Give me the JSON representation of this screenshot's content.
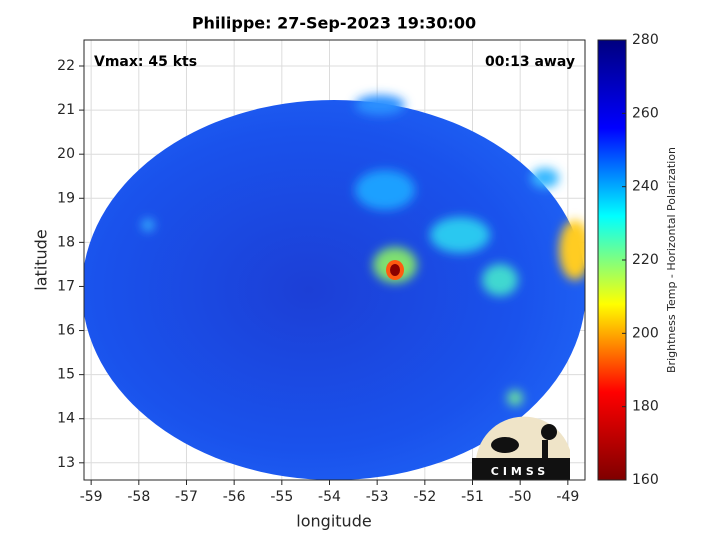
{
  "chart_data": {
    "type": "heatmap",
    "title": "Philippe: 27-Sep-2023 19:30:00",
    "annotations": [
      "Vmax: 45 kts",
      "00:13 away"
    ],
    "xlabel": "longitude",
    "ylabel": "latitude",
    "xlim": [
      -59.15,
      -48.64
    ],
    "ylim": [
      12.61,
      22.59
    ],
    "xticks": [
      -59,
      -58,
      -57,
      -56,
      -55,
      -54,
      -53,
      -52,
      -51,
      -50,
      -49
    ],
    "yticks": [
      13,
      14,
      15,
      16,
      17,
      18,
      19,
      20,
      21,
      22
    ],
    "grid": true,
    "colormap": "jet",
    "colorbar": {
      "label": "Brightness Temp - Horizontal Polarization",
      "lim": [
        160,
        280
      ],
      "ticks": [
        160,
        180,
        200,
        220,
        240,
        260,
        280
      ]
    },
    "logo": "CIMSS"
  }
}
